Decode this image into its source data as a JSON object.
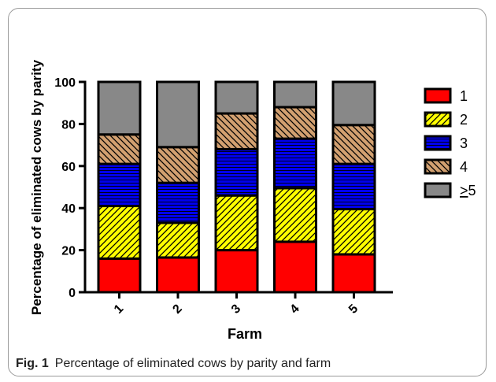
{
  "chart_data": {
    "type": "bar",
    "stacked": true,
    "xlabel": "Farm",
    "ylabel": "Percentage of eliminated cows by parity",
    "ylim": [
      0,
      100
    ],
    "yticks": [
      0,
      20,
      40,
      60,
      80,
      100
    ],
    "categories": [
      "1",
      "2",
      "3",
      "4",
      "5"
    ],
    "legend_position": "right",
    "grid": false,
    "series": [
      {
        "name": "1",
        "color": "#ff0000",
        "pattern": "solid",
        "values": [
          16,
          16.5,
          20,
          24,
          18
        ]
      },
      {
        "name": "2",
        "color": "#ffff00",
        "pattern": "diagonal",
        "values": [
          25,
          16.5,
          26,
          25.5,
          21.5
        ]
      },
      {
        "name": "3",
        "color": "#0000ee",
        "pattern": "horizontal",
        "values": [
          20,
          19,
          22,
          23.5,
          21.5
        ]
      },
      {
        "name": "4",
        "color": "#d2a070",
        "pattern": "diagonal",
        "values": [
          14,
          17,
          17,
          15,
          18.5
        ]
      },
      {
        "name": ">5",
        "color": "#888888",
        "pattern": "solid",
        "values": [
          25,
          31,
          15,
          12,
          20.5
        ]
      }
    ]
  },
  "caption": {
    "label": "Fig. 1",
    "text": "Percentage of eliminated cows by parity and farm"
  }
}
